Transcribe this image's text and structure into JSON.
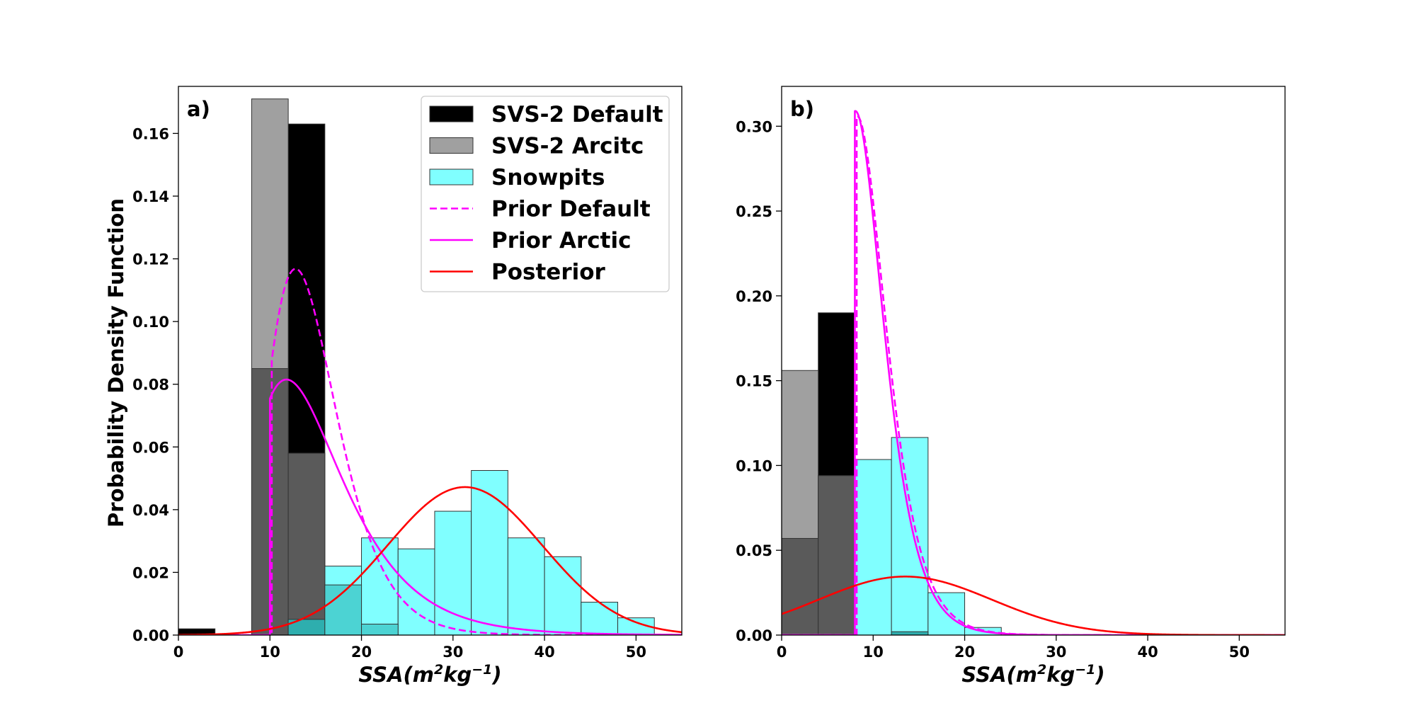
{
  "chart_data": [
    {
      "type": "bar",
      "panel_label": "a)",
      "xlabel": "SSA(m²kg⁻¹)",
      "ylabel": "Probability Density Function",
      "xlim": [
        0,
        55
      ],
      "ylim": [
        0,
        0.175
      ],
      "xticks": [
        0,
        10,
        20,
        30,
        40,
        50
      ],
      "yticks": [
        0.0,
        0.02,
        0.04,
        0.06,
        0.08,
        0.1,
        0.12,
        0.14,
        0.16
      ],
      "legend_position": "upper-right",
      "histograms": [
        {
          "name": "SVS-2 Default",
          "color": "#000000",
          "bins": [
            [
              0,
              4,
              0.002
            ],
            [
              8,
              12,
              0.001
            ],
            [
              12,
              16,
              0.163
            ]
          ]
        },
        {
          "name": "SVS-2 Arcitc",
          "color": "#a0a0a0",
          "bins": [
            [
              8,
              12,
              0.171
            ],
            [
              12,
              16,
              0.058
            ]
          ]
        },
        {
          "name": "Snowpits",
          "color": "#80ffff",
          "bins": [
            [
              12,
              16,
              0.005
            ],
            [
              16,
              20,
              0.022
            ],
            [
              20,
              24,
              0.031
            ],
            [
              24,
              28,
              0.0275
            ],
            [
              28,
              32,
              0.0395
            ],
            [
              32,
              36,
              0.0525
            ],
            [
              36,
              40,
              0.031
            ],
            [
              40,
              44,
              0.025
            ],
            [
              44,
              48,
              0.0105
            ],
            [
              48,
              52,
              0.0055
            ]
          ]
        }
      ],
      "overlaps": [
        {
          "color": "#5a5a5a",
          "bins": [
            [
              8,
              12,
              0.085
            ],
            [
              12,
              16,
              0.058
            ]
          ]
        },
        {
          "color": "#2eaeae",
          "bins": [
            [
              12,
              16,
              0.005
            ]
          ]
        },
        {
          "color": "#4cd3d3",
          "bins": [
            [
              16,
              20,
              0.016
            ]
          ]
        },
        {
          "color": "#4cd3d3",
          "bins": [
            [
              20,
              24,
              0.0035
            ]
          ]
        }
      ],
      "curves": [
        {
          "name": "Prior Default",
          "color": "#ff00ff",
          "dash": true,
          "kind": "trunc_lognormal",
          "cut": 10.2,
          "mode": 12.8,
          "sigma": 0.3,
          "peak": 0.1168
        },
        {
          "name": "Prior Arctic",
          "color": "#ff00ff",
          "dash": false,
          "kind": "trunc_lognormal",
          "cut": 10.0,
          "mode": 11.8,
          "sigma": 0.42,
          "peak": 0.0815
        },
        {
          "name": "Posterior",
          "color": "#ff0000",
          "dash": false,
          "kind": "normal",
          "mu": 31.3,
          "sd": 8.45,
          "peak": 0.0472
        }
      ]
    },
    {
      "type": "bar",
      "panel_label": "b)",
      "xlabel": "SSA(m²kg⁻¹)",
      "ylabel": "",
      "xlim": [
        0,
        55
      ],
      "ylim": [
        0,
        0.3235
      ],
      "xticks": [
        0,
        10,
        20,
        30,
        40,
        50
      ],
      "yticks": [
        0.0,
        0.05,
        0.1,
        0.15,
        0.2,
        0.25,
        0.3
      ],
      "histograms": [
        {
          "name": "SVS-2 Default",
          "color": "#000000",
          "bins": [
            [
              0,
              4,
              0.057
            ],
            [
              4,
              8,
              0.19
            ],
            [
              12,
              16,
              0.002
            ]
          ]
        },
        {
          "name": "SVS-2 Arcitc",
          "color": "#a0a0a0",
          "bins": [
            [
              0,
              4,
              0.156
            ],
            [
              4,
              8,
              0.094
            ]
          ]
        },
        {
          "name": "Snowpits",
          "color": "#80ffff",
          "bins": [
            [
              8,
              12,
              0.1035
            ],
            [
              12,
              16,
              0.1165
            ],
            [
              16,
              20,
              0.025
            ],
            [
              20,
              24,
              0.0045
            ]
          ]
        }
      ],
      "overlaps": [
        {
          "color": "#5a5a5a",
          "bins": [
            [
              0,
              4,
              0.057
            ],
            [
              4,
              8,
              0.094
            ]
          ]
        },
        {
          "color": "#2eaeae",
          "bins": [
            [
              12,
              16,
              0.002
            ]
          ]
        }
      ],
      "curves": [
        {
          "name": "Prior Default",
          "color": "#ff00ff",
          "dash": true,
          "kind": "trunc_lognormal",
          "cut": 8.2,
          "mode": 8.25,
          "sigma": 0.32,
          "peak": 0.306
        },
        {
          "name": "Prior Arctic",
          "color": "#ff00ff",
          "dash": false,
          "kind": "trunc_lognormal",
          "cut": 8.0,
          "mode": 8.05,
          "sigma": 0.32,
          "peak": 0.309
        },
        {
          "name": "Posterior",
          "color": "#ff0000",
          "dash": false,
          "kind": "normal",
          "mu": 13.5,
          "sd": 9.45,
          "peak": 0.0345
        }
      ]
    }
  ],
  "legend": [
    {
      "label": "SVS-2 Default",
      "kind": "patch",
      "color": "#000000"
    },
    {
      "label": "SVS-2 Arcitc",
      "kind": "patch",
      "color": "#a0a0a0"
    },
    {
      "label": "Snowpits",
      "kind": "patch",
      "color": "#80ffff"
    },
    {
      "label": "Prior Default",
      "kind": "line",
      "color": "#ff00ff",
      "dash": true
    },
    {
      "label": "Prior Arctic",
      "kind": "line",
      "color": "#ff00ff",
      "dash": false
    },
    {
      "label": "Posterior",
      "kind": "line",
      "color": "#ff0000",
      "dash": false
    }
  ]
}
